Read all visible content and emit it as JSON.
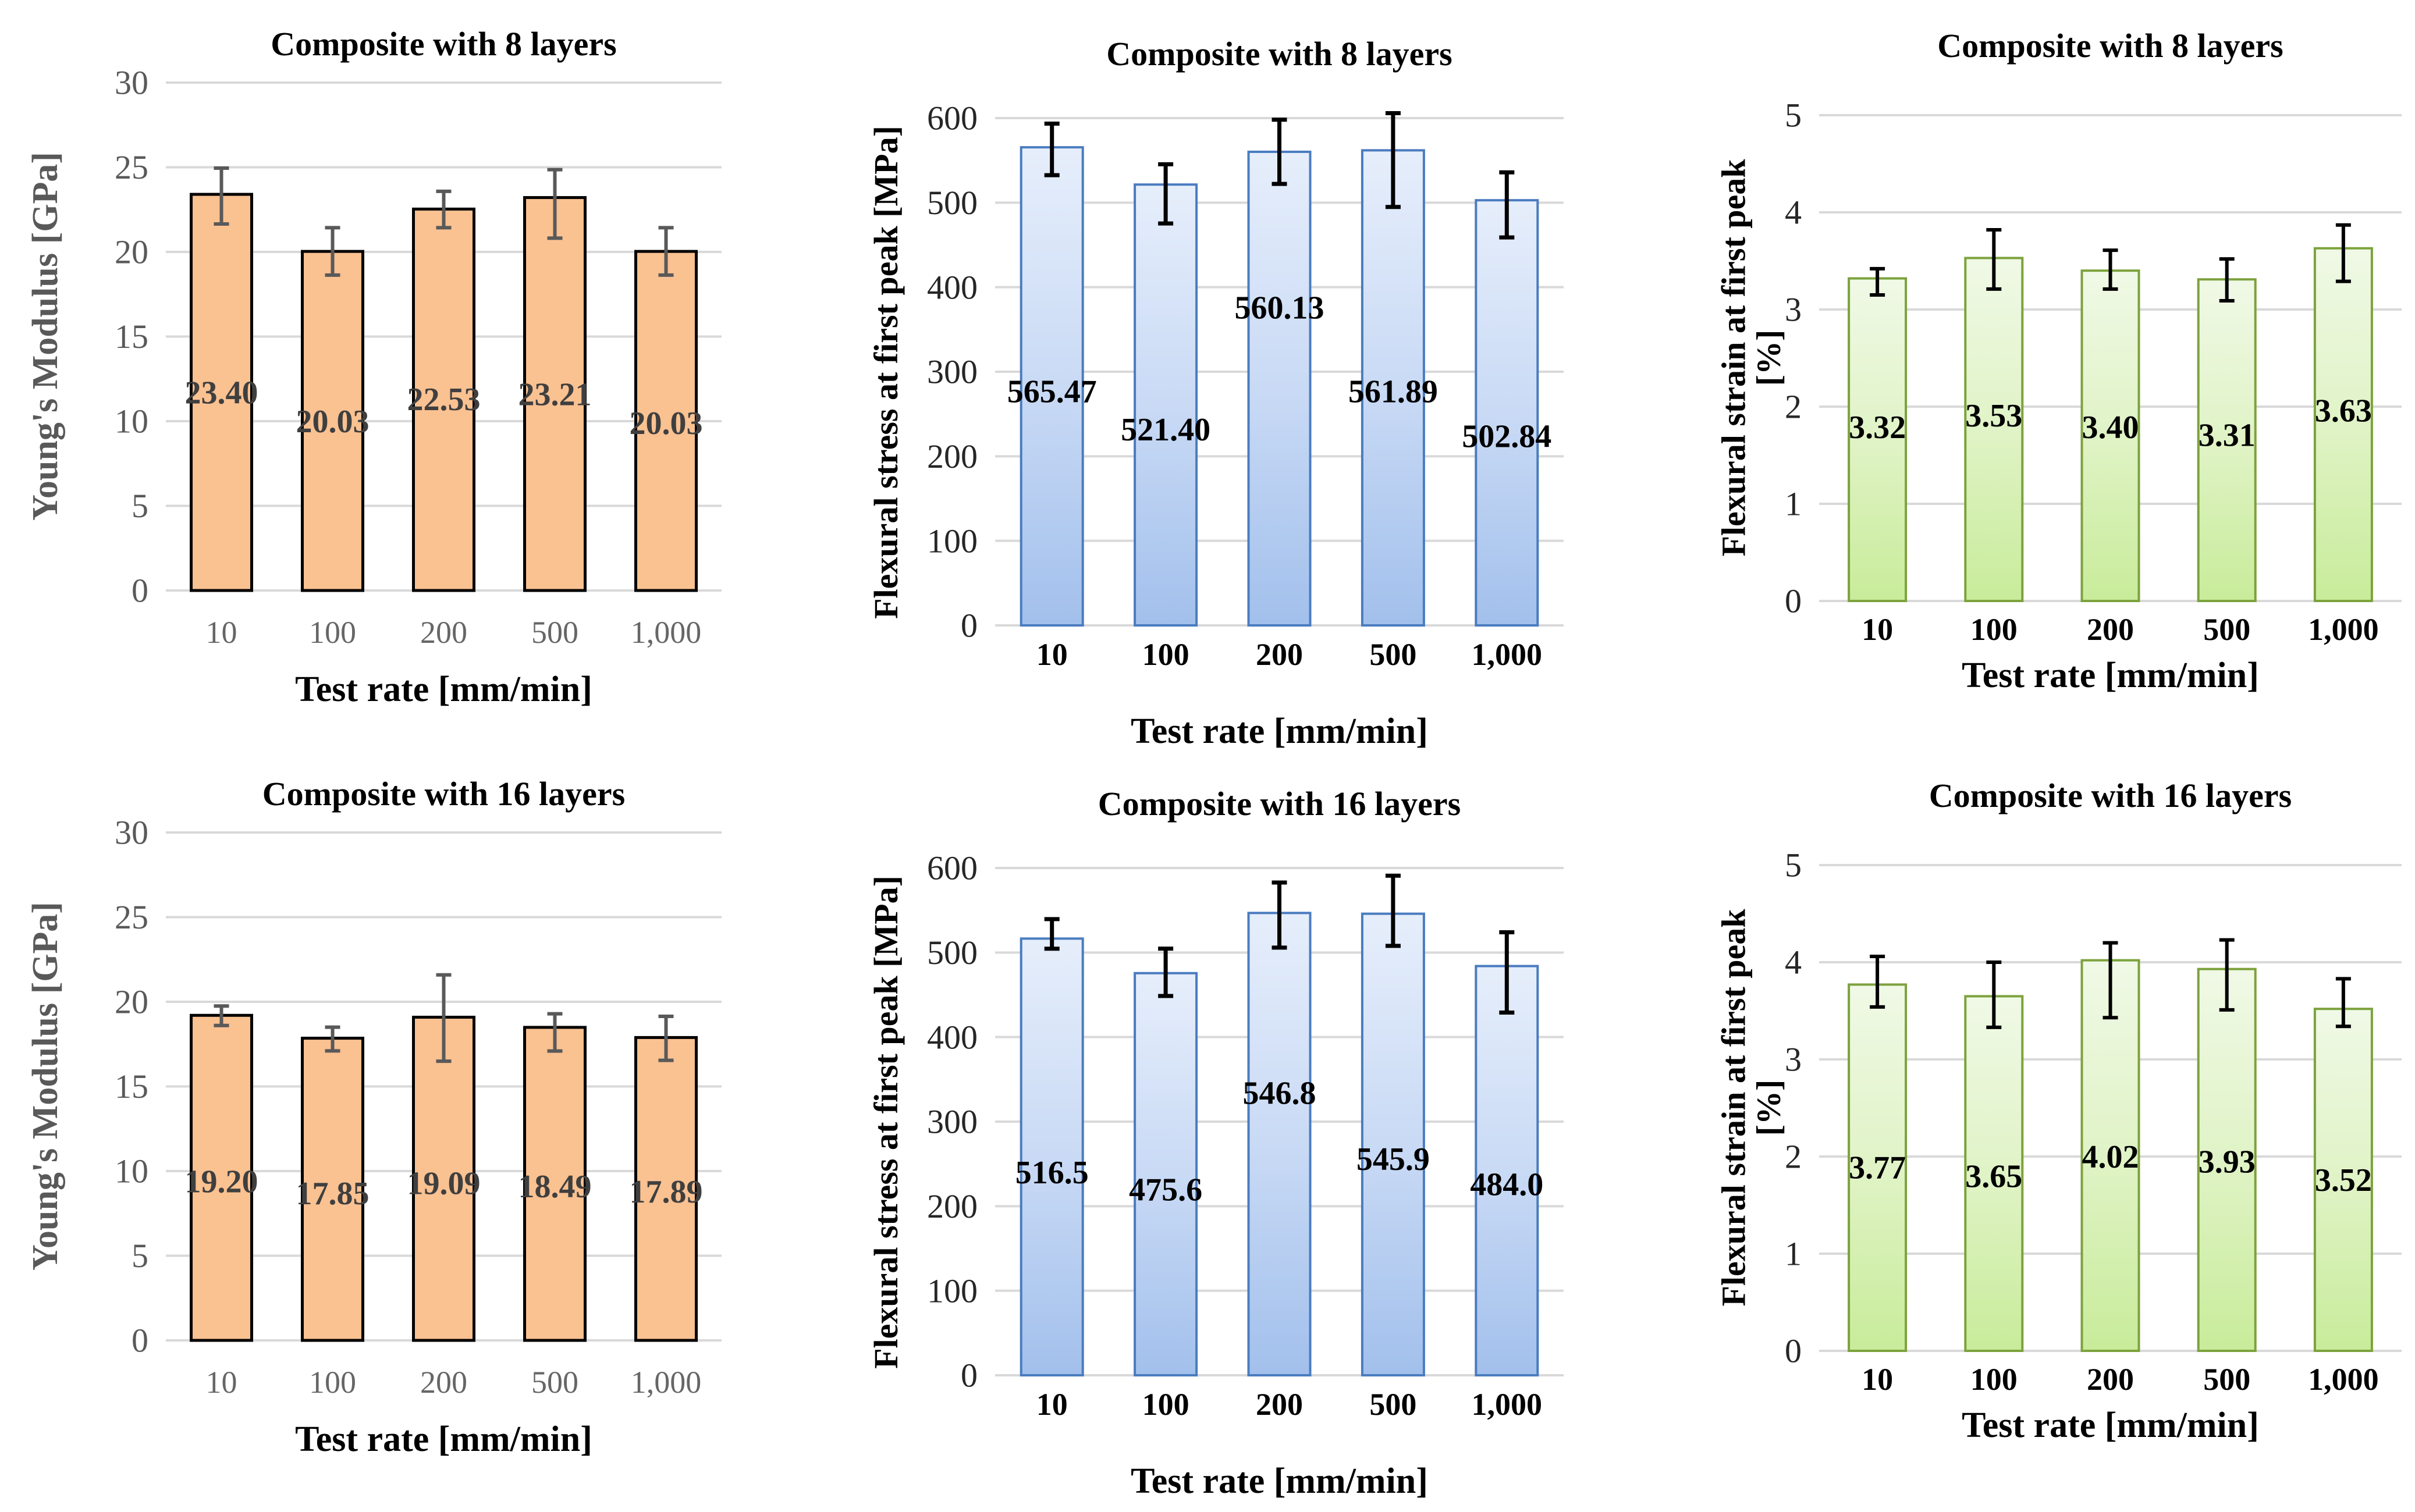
{
  "page": {
    "background": "#ffffff",
    "gridline_color": "#D9D9D9"
  },
  "styles": {
    "orange": {
      "fill_top": "#FAC191",
      "fill_mid": "#FAC191",
      "fill_bottom": "#FAC191",
      "border": "#000000",
      "border_width": 5,
      "error_color": "#595959",
      "error_width": 6,
      "label_color": "#3F3F3F",
      "ytick_color": "#595959",
      "xtick_color": "#666666",
      "xtick_bold": false,
      "ytitle_color": "#595959"
    },
    "blue": {
      "fill_top": "#E6EEFB",
      "fill_mid": "#C9DAF5",
      "fill_bottom": "#A2C0EC",
      "border": "#4A7CBF",
      "border_width": 4,
      "error_color": "#000000",
      "error_width": 7,
      "label_color": "#000000",
      "ytick_color": "#262626",
      "xtick_color": "#000000",
      "xtick_bold": true,
      "ytitle_color": "#000000"
    },
    "green": {
      "fill_top": "#F0F9E6",
      "fill_mid": "#E0F3C6",
      "fill_bottom": "#C8EC9A",
      "border": "#7CA23D",
      "border_width": 4,
      "error_color": "#000000",
      "error_width": 6,
      "label_color": "#000000",
      "ytick_color": "#262626",
      "xtick_color": "#000000",
      "xtick_bold": true,
      "ytitle_color": "#000000"
    }
  },
  "chart_data": [
    {
      "type": "bar",
      "style": "orange",
      "title": "Composite with 8 layers",
      "xlabel": "Test rate [mm/min]",
      "ylabel": "Young's Modulus [GPa]",
      "ylabel_line1": "Young's Modulus [GPa]",
      "ylabel_line2": "",
      "categories": [
        "10",
        "100",
        "200",
        "500",
        "1,000"
      ],
      "values": [
        23.4,
        20.03,
        22.53,
        23.21,
        20.03
      ],
      "value_labels": [
        "23.40",
        "20.03",
        "22.53",
        "23.21",
        "20.03"
      ],
      "error_plus": [
        1.55,
        1.4,
        1.05,
        1.65,
        1.4
      ],
      "error_minus": [
        1.75,
        1.4,
        1.1,
        2.4,
        1.4
      ],
      "label_y": [
        11.7,
        10.0,
        11.3,
        11.6,
        9.9
      ],
      "ylim": [
        0,
        30
      ],
      "ytick_step": 5,
      "grid": true,
      "legend": "none"
    },
    {
      "type": "bar",
      "style": "blue",
      "title": "Composite with 8 layers",
      "xlabel": "Test rate [mm/min]",
      "ylabel": "Flexural stress at first peak [MPa]",
      "ylabel_line1": "Flexural stress at first peak [MPa]",
      "ylabel_line2": "",
      "categories": [
        "10",
        "100",
        "200",
        "500",
        "1,000"
      ],
      "values": [
        565.47,
        521.4,
        560.13,
        561.89,
        502.84
      ],
      "value_labels": [
        "565.47",
        "521.40",
        "560.13",
        "561.89",
        "502.84"
      ],
      "error_plus": [
        28,
        24,
        38,
        44,
        33
      ],
      "error_minus": [
        33,
        46,
        38,
        67,
        44
      ],
      "label_y": [
        277,
        232,
        376,
        277,
        224
      ],
      "ylim": [
        0,
        600
      ],
      "ytick_step": 100,
      "grid": true,
      "legend": "none"
    },
    {
      "type": "bar",
      "style": "green",
      "title": "Composite with 8 layers",
      "xlabel": "Test rate [mm/min]",
      "ylabel": "Flexural strain at first peak [%]",
      "ylabel_line1": "Flexural strain at first peak",
      "ylabel_line2": "[%]",
      "categories": [
        "10",
        "100",
        "200",
        "500",
        "1,000"
      ],
      "values": [
        3.32,
        3.53,
        3.4,
        3.31,
        3.63
      ],
      "value_labels": [
        "3.32",
        "3.53",
        "3.40",
        "3.31",
        "3.63"
      ],
      "error_plus": [
        0.1,
        0.29,
        0.21,
        0.21,
        0.24
      ],
      "error_minus": [
        0.17,
        0.32,
        0.19,
        0.22,
        0.34
      ],
      "label_y": [
        1.79,
        1.91,
        1.79,
        1.71,
        1.96
      ],
      "ylim": [
        0,
        5
      ],
      "ytick_step": 1,
      "grid": true,
      "legend": "none"
    },
    {
      "type": "bar",
      "style": "orange",
      "title": "Composite with 16 layers",
      "xlabel": "Test rate [mm/min]",
      "ylabel": "Young's Modulus [GPa]",
      "ylabel_line1": "Young's Modulus [GPa]",
      "ylabel_line2": "",
      "categories": [
        "10",
        "100",
        "200",
        "500",
        "1,000"
      ],
      "values": [
        19.2,
        17.85,
        19.09,
        18.49,
        17.89
      ],
      "value_labels": [
        "19.20",
        "17.85",
        "19.09",
        "18.49",
        "17.89"
      ],
      "error_plus": [
        0.55,
        0.65,
        2.5,
        0.8,
        1.25
      ],
      "error_minus": [
        0.6,
        0.75,
        2.6,
        1.4,
        1.35
      ],
      "label_y": [
        9.4,
        8.7,
        9.3,
        9.1,
        8.8
      ],
      "ylim": [
        0,
        30
      ],
      "ytick_step": 5,
      "grid": true,
      "legend": "none"
    },
    {
      "type": "bar",
      "style": "blue",
      "title": "Composite with 16 layers",
      "xlabel": "Test rate [mm/min]",
      "ylabel": "Flexural stress at first peak [MPa]",
      "ylabel_line1": "Flexural stress at first peak [MPa]",
      "ylabel_line2": "",
      "categories": [
        "10",
        "100",
        "200",
        "500",
        "1,000"
      ],
      "values": [
        516.5,
        475.6,
        546.8,
        545.9,
        484.0
      ],
      "value_labels": [
        "516.5",
        "475.6",
        "546.8",
        "545.9",
        "484.0"
      ],
      "error_plus": [
        23,
        29,
        36,
        45,
        40
      ],
      "error_minus": [
        12,
        27,
        41,
        38,
        55
      ],
      "label_y": [
        240,
        220,
        334,
        256,
        226
      ],
      "ylim": [
        0,
        600
      ],
      "ytick_step": 100,
      "grid": true,
      "legend": "none"
    },
    {
      "type": "bar",
      "style": "green",
      "title": "Composite with 16 layers",
      "xlabel": "Test rate [mm/min]",
      "ylabel": "Flexural strain at first peak [%]",
      "ylabel_line1": "Flexural strain at first peak",
      "ylabel_line2": "[%]",
      "categories": [
        "10",
        "100",
        "200",
        "500",
        "1,000"
      ],
      "values": [
        3.77,
        3.65,
        4.02,
        3.93,
        3.52
      ],
      "value_labels": [
        "3.77",
        "3.65",
        "4.02",
        "3.93",
        "3.52"
      ],
      "error_plus": [
        0.29,
        0.35,
        0.18,
        0.3,
        0.31
      ],
      "error_minus": [
        0.23,
        0.32,
        0.59,
        0.42,
        0.18
      ],
      "label_y": [
        1.89,
        1.8,
        2.0,
        1.95,
        1.76
      ],
      "ylim": [
        0,
        5
      ],
      "ytick_step": 1,
      "grid": true,
      "legend": "none"
    }
  ]
}
